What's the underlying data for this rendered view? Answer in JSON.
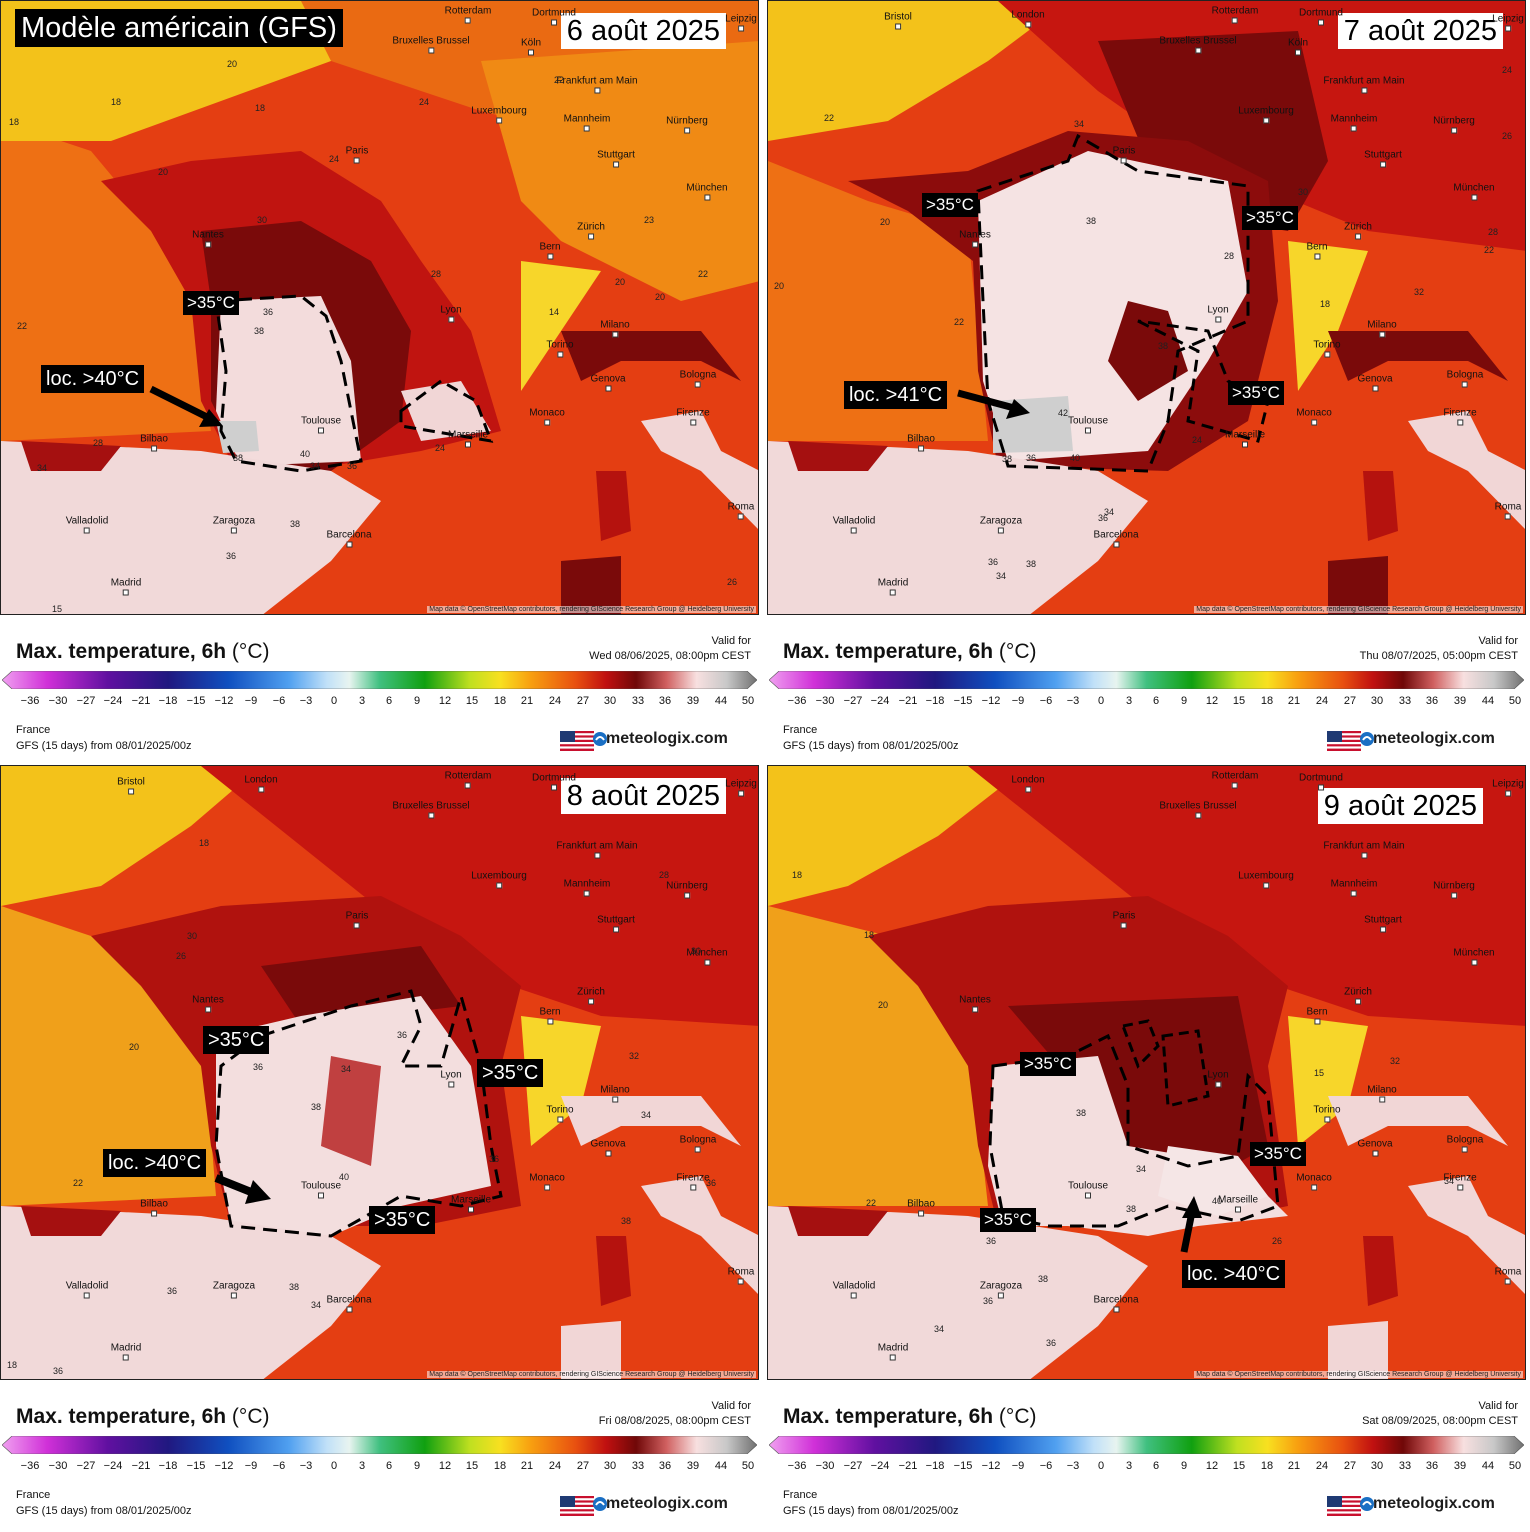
{
  "model_title": "Modèle américain (GFS)",
  "legend_common": {
    "title": "Max. temperature, 6h",
    "unit": "(°C)",
    "valid_for_label": "Valid for",
    "region": "France",
    "run": "GFS (15 days) from  08/01/2025/00z",
    "brand": "meteologix.com",
    "scale_ticks": [
      "−36",
      "−30",
      "−27",
      "−24",
      "−21",
      "−18",
      "−15",
      "−12",
      "−9",
      "−6",
      "−3",
      "0",
      "3",
      "6",
      "9",
      "12",
      "15",
      "18",
      "21",
      "24",
      "27",
      "30",
      "33",
      "36",
      "39",
      "44",
      "50"
    ],
    "credit": "Map data © OpenStreetMap contributors, rendering GIScience Research Group @ Heidelberg University"
  },
  "colors": {
    "sea_warm": "#ec5a12",
    "land_hot": "#b8130e",
    "land_very_hot": "#7a0a0a",
    "extreme": "#f7e4e4",
    "cool_yellow": "#f3c21a",
    "orange": "#f08a14"
  },
  "cities": [
    "Rotterdam",
    "Dortmund",
    "Leipzig",
    "Bristol",
    "London",
    "Bruxelles Brussel",
    "Köln",
    "Frankfurt am Main",
    "Luxembourg",
    "Mannheim",
    "Nürnberg",
    "Paris",
    "Stuttgart",
    "München",
    "Nantes",
    "Zürich",
    "Bern",
    "Lyon",
    "Milano",
    "Torino",
    "Genova",
    "Bologna",
    "Monaco",
    "Marseille",
    "Firenze",
    "Toulouse",
    "Bilbao",
    "Valladolid",
    "Zaragoza",
    "Barcelona",
    "Madrid",
    "Roma"
  ],
  "panels": [
    {
      "date": "6 août 2025",
      "valid": "Wed 08/06/2025, 08:00pm CEST",
      "labels": [
        {
          "text": ">35°C",
          "big": false
        },
        {
          "text": "loc. >40°C",
          "big": false
        }
      ],
      "iso_values": [
        "20",
        "18",
        "18",
        "18",
        "20",
        "24",
        "24",
        "22",
        "22",
        "24",
        "30",
        "28",
        "28",
        "36",
        "38",
        "38",
        "40",
        "34",
        "36",
        "34",
        "38",
        "36",
        "26",
        "20",
        "22",
        "23",
        "22",
        "20",
        "24",
        "14",
        "30",
        "36",
        "34",
        "24",
        "26",
        "36",
        "38",
        "36",
        "34",
        "30",
        "15"
      ]
    },
    {
      "date": "7 août 2025",
      "valid": "Thu 08/07/2025, 05:00pm CEST",
      "labels": [
        {
          "text": ">35°C",
          "big": false
        },
        {
          "text": ">35°C",
          "big": false
        },
        {
          "text": ">35°C",
          "big": false
        },
        {
          "text": "loc. >41°C",
          "big": true
        }
      ],
      "iso_values": [
        "20",
        "20",
        "22",
        "22",
        "34",
        "38",
        "38",
        "42",
        "40",
        "36",
        "38",
        "28",
        "24",
        "22",
        "18",
        "32",
        "30",
        "26",
        "24",
        "28",
        "36",
        "34",
        "38",
        "36",
        "34"
      ]
    },
    {
      "date": "8 août 2025",
      "valid": "Fri 08/08/2025, 08:00pm CEST",
      "labels": [
        {
          "text": ">35°C",
          "big": false
        },
        {
          "text": ">35°C",
          "big": false
        },
        {
          "text": ">35°C",
          "big": false
        },
        {
          "text": "loc. >40°C",
          "big": true
        }
      ],
      "iso_values": [
        "18",
        "30",
        "26",
        "20",
        "22",
        "36",
        "38",
        "34",
        "36",
        "40",
        "36",
        "30",
        "28",
        "18",
        "32",
        "34",
        "36",
        "38",
        "38",
        "36",
        "34",
        "36"
      ]
    },
    {
      "date": "9 août 2025",
      "valid": "Sat 08/09/2025, 08:00pm CEST",
      "labels": [
        {
          "text": ">35°C",
          "big": false
        },
        {
          "text": ">35°C",
          "big": false
        },
        {
          "text": ">35°C",
          "big": false
        },
        {
          "text": "loc. >40°C",
          "big": true
        }
      ],
      "iso_values": [
        "18",
        "18",
        "20",
        "22",
        "36",
        "38",
        "34",
        "40",
        "38",
        "26",
        "34",
        "15",
        "32",
        "38",
        "36",
        "34",
        "36"
      ]
    }
  ]
}
